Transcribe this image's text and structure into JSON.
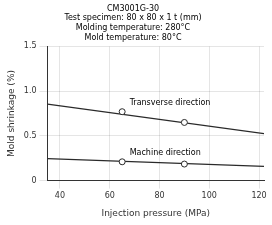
{
  "chart_data": {
    "type": "scatter",
    "title": "CM3001G-30\nTest specimen: 80 x 80 x 1 t (mm)\nMolding temperature: 280°C\nMold temperature: 80°C",
    "x_label": "Injection pressure (MPa)",
    "y_label": "Mold shrinkage (%)",
    "xlim": [
      35,
      122
    ],
    "ylim": [
      0,
      1.5
    ],
    "xticks": [
      40,
      60,
      80,
      100,
      120
    ],
    "yticks": [
      0,
      0.5,
      {
        "value": 1.0,
        "label": "1.0"
      },
      1.5
    ],
    "grid": true,
    "series": [
      {
        "type": "line",
        "x": [
          35,
          122
        ],
        "values": [
          0.855,
          0.525
        ],
        "color": "#2a2a2a",
        "line_style": "solid"
      },
      {
        "type": "scatter",
        "x": [
          65,
          90
        ],
        "values": [
          0.77,
          0.65
        ],
        "color": "#2a2a2a",
        "marker": "open_circle"
      },
      {
        "type": "line",
        "x": [
          35,
          122
        ],
        "values": [
          0.245,
          0.16
        ],
        "color": "#2a2a2a",
        "line_style": "solid"
      },
      {
        "type": "scatter",
        "x": [
          65,
          90
        ],
        "values": [
          0.21,
          0.185
        ],
        "color": "#2a2a2a",
        "marker": "open_circle"
      }
    ],
    "annotations": [
      {
        "text": "Transverse direction",
        "x": 68,
        "y": 0.82
      },
      {
        "text": "Machine direction",
        "x": 68,
        "y": 0.265
      }
    ]
  }
}
